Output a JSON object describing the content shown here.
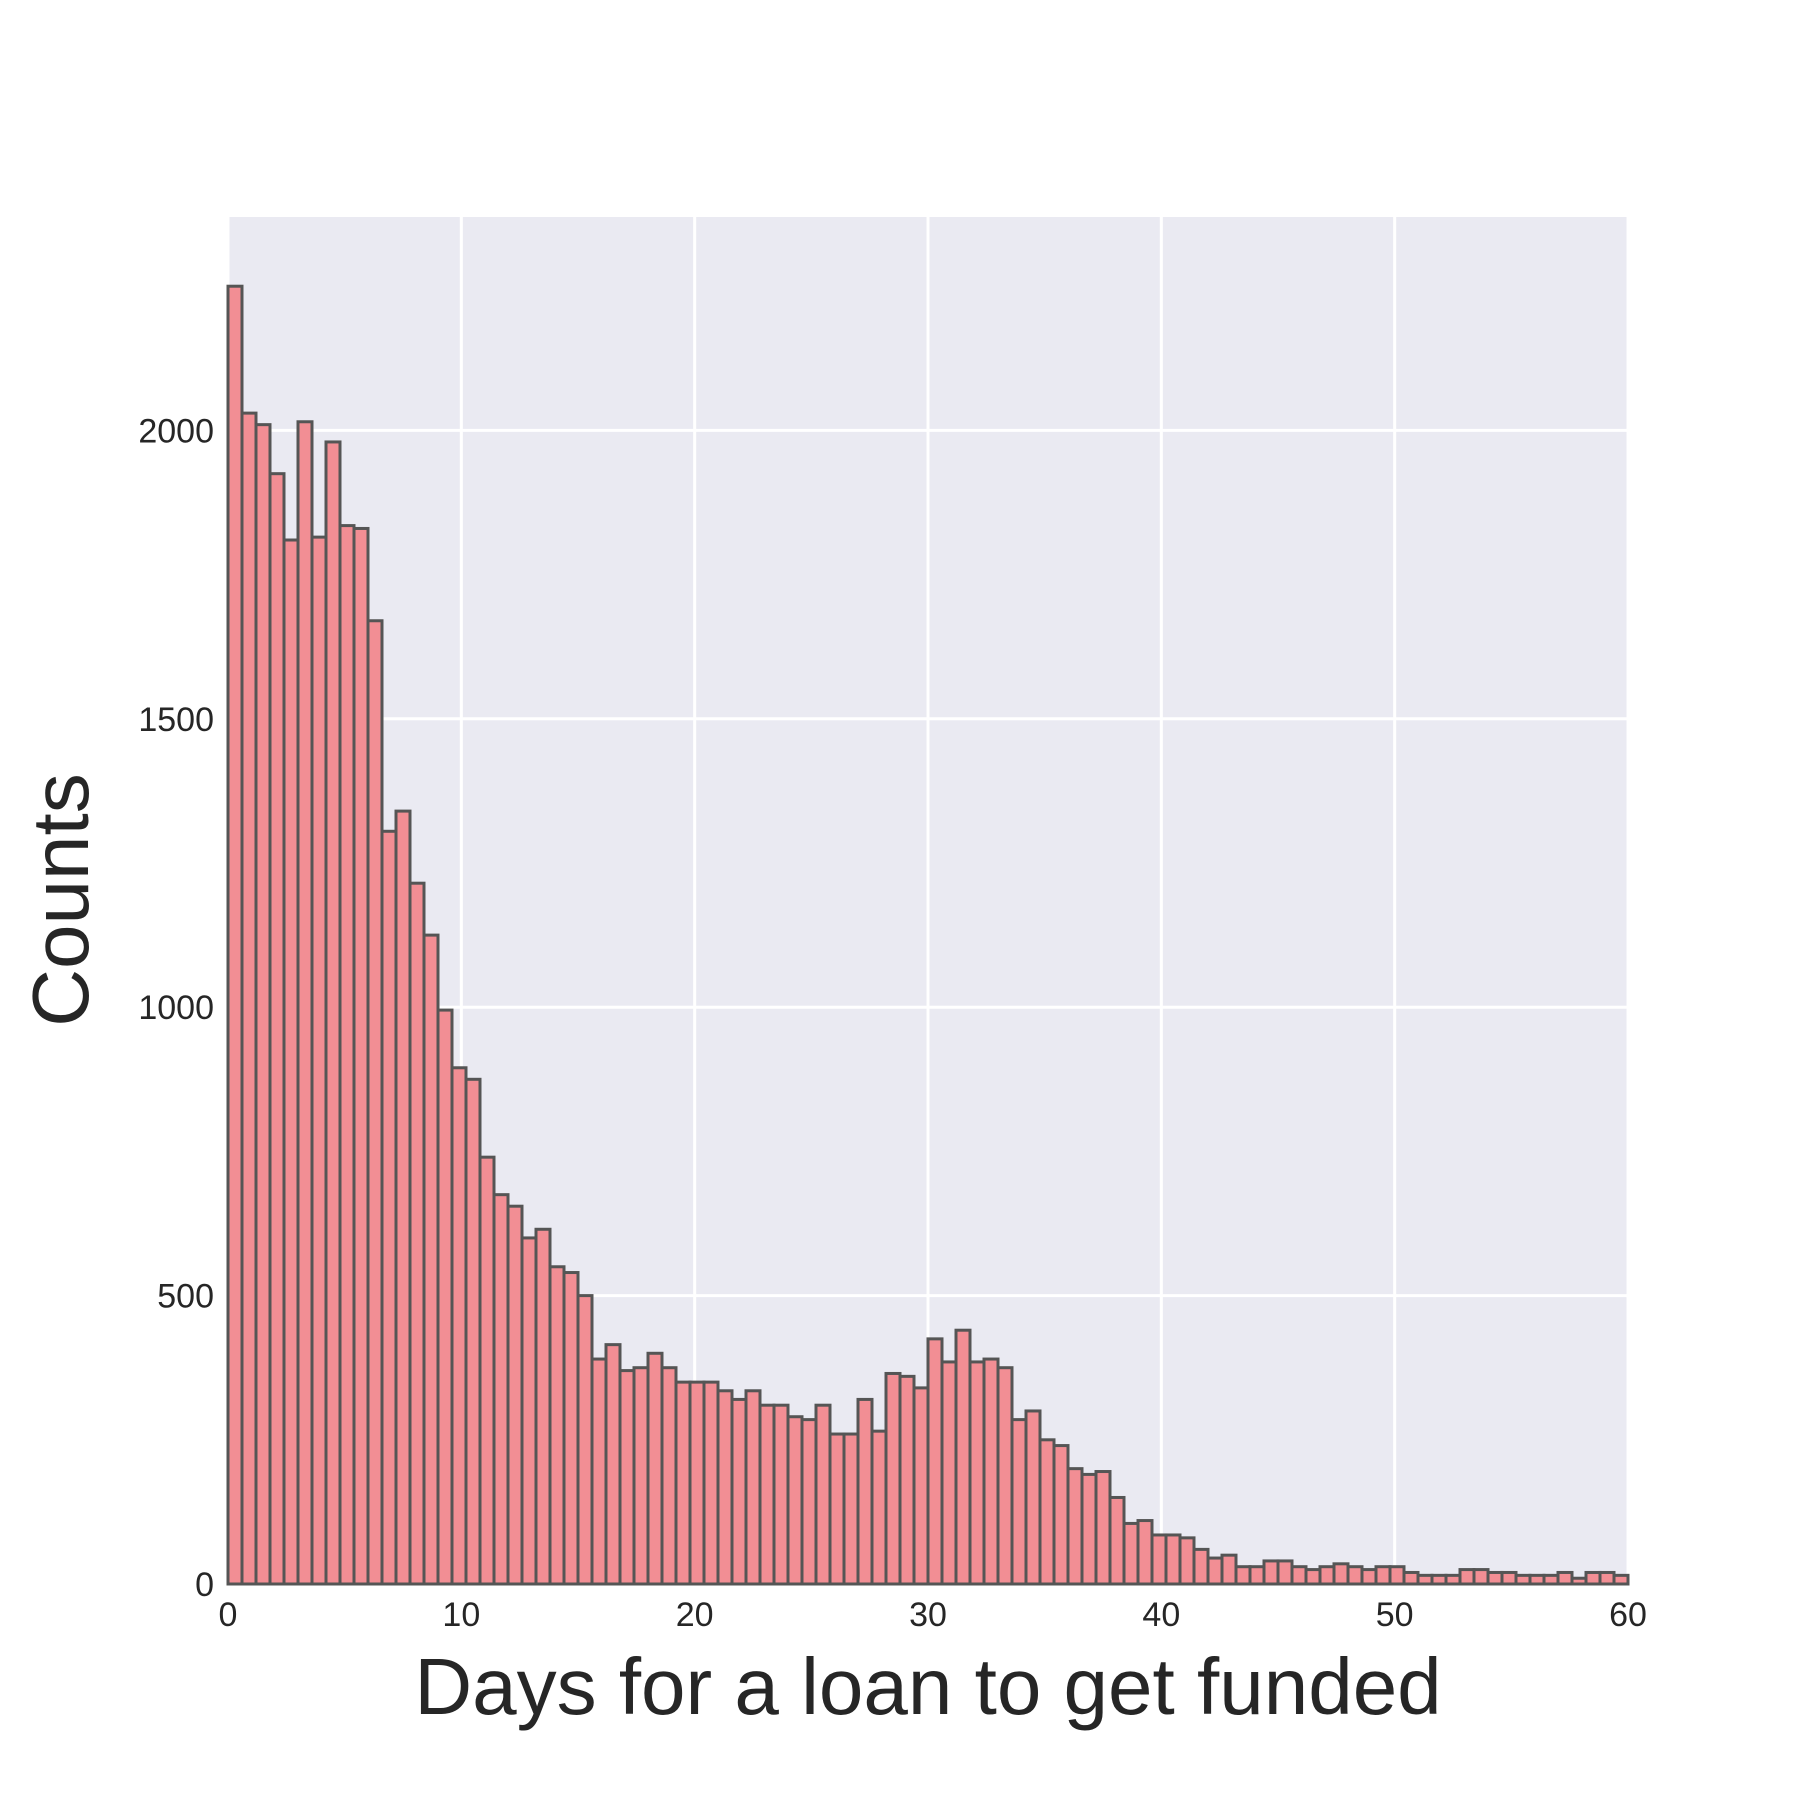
{
  "chart_data": {
    "type": "bar",
    "title": "",
    "xlabel": "Days for a loan to get funded",
    "ylabel": "Counts",
    "xlim": [
      0,
      60
    ],
    "ylim": [
      0,
      2370
    ],
    "xticks": [
      0,
      10,
      20,
      30,
      40,
      50,
      60
    ],
    "xtick_labels": [
      "0",
      "10",
      "20",
      "30",
      "40",
      "50",
      "60"
    ],
    "yticks": [
      0,
      500,
      1000,
      1500,
      2000
    ],
    "ytick_labels": [
      "0",
      "500",
      "1000",
      "1500",
      "2000"
    ],
    "grid": true,
    "bin_width": 0.6,
    "bin_starts": [
      0.0,
      0.6,
      1.2,
      1.8,
      2.4,
      3.0,
      3.6,
      4.2,
      4.8,
      5.4,
      6.0,
      6.6,
      7.2,
      7.8,
      8.4,
      9.0,
      9.6,
      10.2,
      10.8,
      11.4,
      12.0,
      12.6,
      13.2,
      13.8,
      14.4,
      15.0,
      15.6,
      16.2,
      16.8,
      17.4,
      18.0,
      18.6,
      19.2,
      19.8,
      20.4,
      21.0,
      21.6,
      22.2,
      22.8,
      23.4,
      24.0,
      24.6,
      25.2,
      25.8,
      26.4,
      27.0,
      27.6,
      28.2,
      28.8,
      29.4,
      30.0,
      30.6,
      31.2,
      31.8,
      32.4,
      33.0,
      33.6,
      34.2,
      34.8,
      35.4,
      36.0,
      36.6,
      37.2,
      37.8,
      38.4,
      39.0,
      39.6,
      40.2,
      40.8,
      41.4,
      42.0,
      42.6,
      43.2,
      43.8,
      44.4,
      45.0,
      45.6,
      46.2,
      46.8,
      47.4,
      48.0,
      48.6,
      49.2,
      49.8,
      50.4,
      51.0,
      51.6,
      52.2,
      52.8,
      53.4,
      54.0,
      54.6,
      55.2,
      55.8,
      56.4,
      57.0,
      57.6,
      58.2,
      58.8,
      59.4
    ],
    "values": [
      2250,
      2030,
      2010,
      1925,
      1810,
      2015,
      1815,
      1980,
      1835,
      1830,
      1670,
      1305,
      1340,
      1215,
      1125,
      995,
      895,
      875,
      740,
      675,
      655,
      600,
      615,
      550,
      540,
      500,
      390,
      415,
      370,
      375,
      400,
      375,
      350,
      350,
      350,
      335,
      320,
      335,
      310,
      310,
      290,
      285,
      310,
      260,
      260,
      320,
      265,
      365,
      360,
      340,
      425,
      385,
      440,
      385,
      390,
      375,
      285,
      300,
      250,
      240,
      200,
      190,
      195,
      150,
      105,
      110,
      85,
      85,
      80,
      60,
      45,
      50,
      30,
      30,
      40,
      40,
      30,
      25,
      30,
      35,
      30,
      25,
      30,
      30,
      20,
      15,
      15,
      15,
      25,
      25,
      20,
      20,
      15,
      15,
      15,
      20,
      10,
      20,
      20,
      15
    ],
    "bar_color": "#f28e94",
    "edge_color": "#555555",
    "plot_background": "#eaeaf2"
  }
}
